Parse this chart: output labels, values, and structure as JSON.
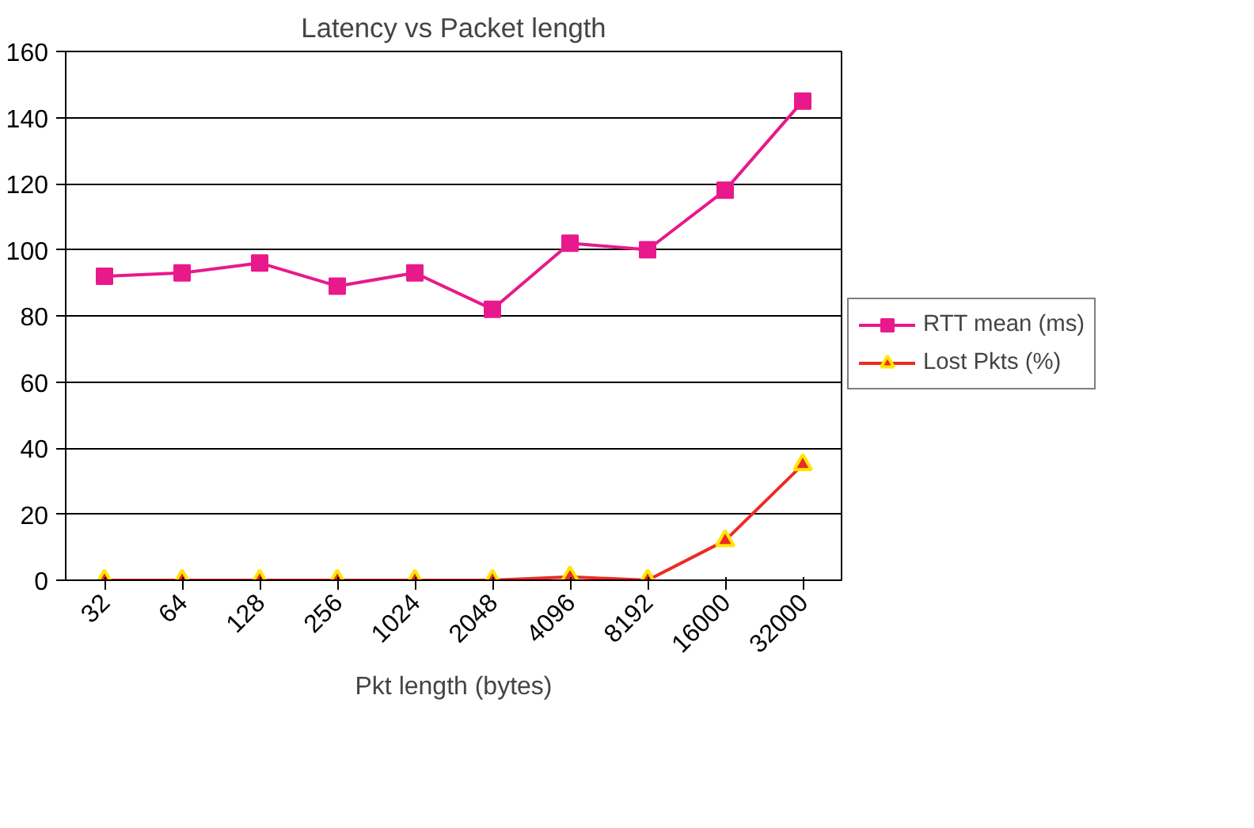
{
  "chart_data": {
    "type": "line",
    "title": "Latency vs Packet length",
    "xlabel": "Pkt length (bytes)",
    "categories": [
      "32",
      "64",
      "128",
      "256",
      "1024",
      "2048",
      "4096",
      "8192",
      "16000",
      "32000"
    ],
    "series": [
      {
        "name": "RTT mean (ms)",
        "color": "#e8198b",
        "marker": "square",
        "values": [
          92,
          93,
          96,
          89,
          93,
          82,
          102,
          100,
          118,
          145
        ]
      },
      {
        "name": "Lost Pkts (%)",
        "color": "#ee2a24",
        "marker": "triangle",
        "values": [
          0,
          0,
          0,
          0,
          0,
          0,
          1,
          0,
          12,
          35
        ]
      }
    ],
    "ylim": [
      0,
      160
    ],
    "yticks": [
      0,
      20,
      40,
      60,
      80,
      100,
      120,
      140,
      160
    ],
    "grid": "y",
    "legend": "right"
  }
}
